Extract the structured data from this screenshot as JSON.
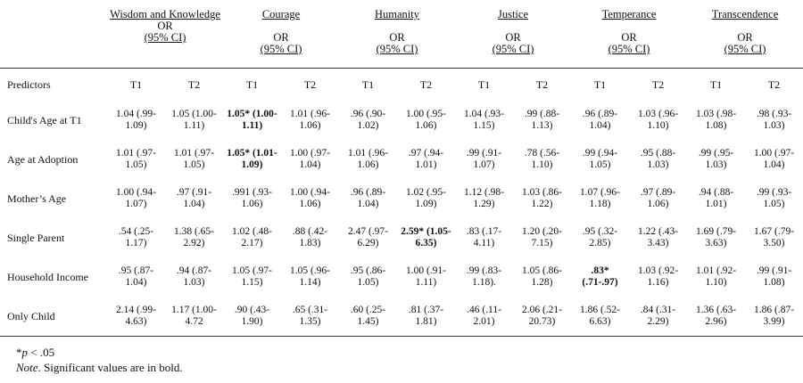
{
  "groups": [
    {
      "title": "Wisdom and Knowledge",
      "or_label": "OR",
      "ci_label": "(95% CI)"
    },
    {
      "title": "Courage",
      "or_label": "OR",
      "ci_label": "(95% CI)"
    },
    {
      "title": "Humanity",
      "or_label": "OR",
      "ci_label": "(95% CI)"
    },
    {
      "title": "Justice",
      "or_label": "OR",
      "ci_label": "(95% CI)"
    },
    {
      "title": "Temperance",
      "or_label": "OR",
      "ci_label": "(95% CI)"
    },
    {
      "title": "Transcendence",
      "or_label": "OR",
      "ci_label": "(95% CI)"
    }
  ],
  "predictors_label": "Predictors",
  "time_labels": [
    "T1",
    "T2",
    "T1",
    "T2",
    "T1",
    "T2",
    "T1",
    "T2",
    "T1",
    "T2",
    "T1",
    "T2"
  ],
  "rows": [
    {
      "label": "Child's Age at T1",
      "cells": [
        {
          "text": "1.04 (.99- 1.09)"
        },
        {
          "text": "1.05 (1.00- 1.11)"
        },
        {
          "text": "1.05* (1.00- 1.11)",
          "bold": true
        },
        {
          "text": "1.01 (.96- 1.06)"
        },
        {
          "text": ".96 (.90- 1.02)"
        },
        {
          "text": "1.00 (.95- 1.06)"
        },
        {
          "text": "1.04 (.93- 1.15)"
        },
        {
          "text": ".99 (.88- 1.13)"
        },
        {
          "text": ".96 (.89- 1.04)"
        },
        {
          "text": "1.03 (.96- 1.10)"
        },
        {
          "text": "1.03 (.98- 1.08)"
        },
        {
          "text": ".98 (.93- 1.03)"
        }
      ]
    },
    {
      "label": "Age at Adoption",
      "cells": [
        {
          "text": "1.01 (.97- 1.05)"
        },
        {
          "text": "1.01 (.97- 1.05)"
        },
        {
          "text": "1.05* (1.01- 1.09)",
          "bold": true
        },
        {
          "text": "1.00 (.97- 1.04)"
        },
        {
          "text": "1.01 (.96- 1.06)"
        },
        {
          "text": ".97 (.94- 1.01)"
        },
        {
          "text": ".99 (.91- 1.07)"
        },
        {
          "text": ".78 (.56- 1.10)"
        },
        {
          "text": ".99 (.94- 1.05)"
        },
        {
          "text": ".95 (.88- 1.03)"
        },
        {
          "text": ".99 (.95- 1.03)"
        },
        {
          "text": "1.00 (.97- 1.04)"
        }
      ]
    },
    {
      "label": "Mother’s  Age",
      "cells": [
        {
          "text": "1.00 (.94- 1.07)"
        },
        {
          "text": ".97 (.91- 1.04)"
        },
        {
          "text": ".991 (.93- 1.06)"
        },
        {
          "text": "1.00 (.94- 1.06)"
        },
        {
          "text": ".96 (.89- 1.04)"
        },
        {
          "text": "1.02 (.95- 1.09)"
        },
        {
          "text": "1.12 (.98- 1.29)"
        },
        {
          "text": "1.03 (.86- 1.22)"
        },
        {
          "text": "1.07 (.96- 1.18)"
        },
        {
          "text": ".97 (.89- 1.06)"
        },
        {
          "text": ".94 (.88- 1.01)"
        },
        {
          "text": ".99 (.93- 1.05)"
        }
      ]
    },
    {
      "label": "Single Parent",
      "cells": [
        {
          "text": ".54 (.25- 1.17)"
        },
        {
          "text": "1.38 (.65- 2.92)"
        },
        {
          "text": "1.02 (.48- 2.17)"
        },
        {
          "text": ".88 (.42- 1.83)"
        },
        {
          "text": "2.47 (.97- 6.29)"
        },
        {
          "text": "2.59* (1.05- 6.35)",
          "bold": true
        },
        {
          "text": ".83 (.17- 4.11)"
        },
        {
          "text": "1.20 (.20- 7.15)"
        },
        {
          "text": ".95 (.32- 2.85)"
        },
        {
          "text": "1.22 (.43- 3.43)"
        },
        {
          "text": "1.69 (.79- 3.63)"
        },
        {
          "text": "1.67 (.79- 3.50)"
        }
      ]
    },
    {
      "label": "Household Income",
      "cells": [
        {
          "text": ".95 (.87- 1.04)"
        },
        {
          "text": ".94 (.87- 1.03)"
        },
        {
          "text": "1.05 (.97- 1.15)"
        },
        {
          "text": "1.05 (.96- 1.14)"
        },
        {
          "text": ".95 (.86- 1.05)"
        },
        {
          "text": "1.00 (.91- 1.11)"
        },
        {
          "text": ".99 (.83- 1.18)."
        },
        {
          "text": "1.05 (.86- 1.28)"
        },
        {
          "text": ".83* (.71-.97)",
          "bold": true
        },
        {
          "text": "1.03 (.92- 1.16)"
        },
        {
          "text": "1.01 (.92- 1.10)"
        },
        {
          "text": ".99 (.91- 1.08)"
        }
      ]
    },
    {
      "label": "Only Child",
      "cells": [
        {
          "text": "2.14 (.99- 4.63)"
        },
        {
          "text": "1.17 (1.00- 4.72"
        },
        {
          "text": ".90 (.43- 1.90)"
        },
        {
          "text": ".65 (.31- 1.35)"
        },
        {
          "text": ".60 (.25- 1.45)"
        },
        {
          "text": ".81 (.37- 1.81)"
        },
        {
          "text": ".46 (.11- 2.01)"
        },
        {
          "text": "2.06 (.21- 20.73)"
        },
        {
          "text": "1.86 (.52- 6.63)"
        },
        {
          "text": ".84 (.31- 2.29)"
        },
        {
          "text": "1.36 (.63- 2.96)"
        },
        {
          "text": "1.86 (.87- 3.99)"
        }
      ]
    }
  ],
  "notes": {
    "p_prefix": "*",
    "p_italic": "p",
    "p_rest": " < .05",
    "note_italic": "Note",
    "note_rest": ". Significant values are in bold."
  }
}
